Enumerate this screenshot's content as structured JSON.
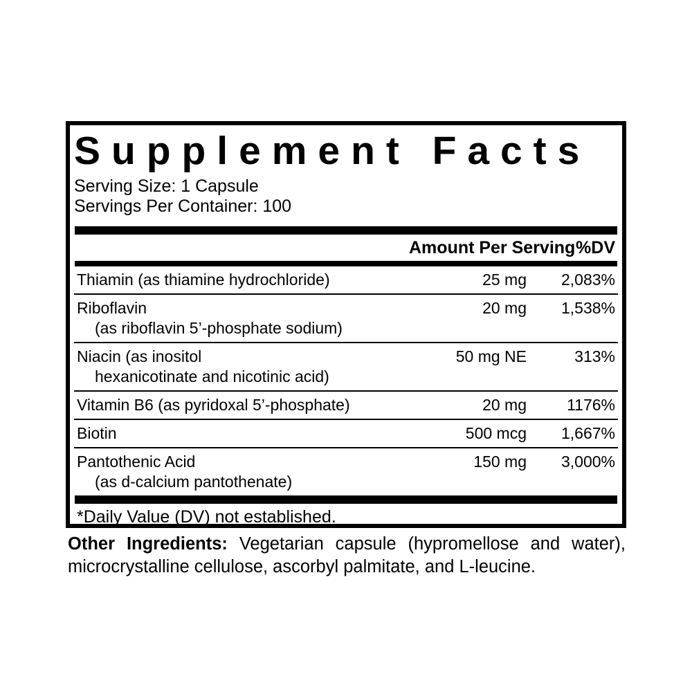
{
  "panel": {
    "title": "Supplement Facts",
    "serving_size_label": "Serving Size:",
    "serving_size_value": "1 Capsule",
    "servings_label": "Servings Per Container:",
    "servings_value": "100",
    "columns": {
      "amount": "Amount Per Serving",
      "dv": "%DV"
    },
    "rows": [
      {
        "name": "Thiamin (as thiamine hydrochloride)",
        "name2": "",
        "amount": "25 mg",
        "dv": "2,083%"
      },
      {
        "name": "Riboflavin",
        "name2": "(as riboflavin 5’-phosphate sodium)",
        "amount": "20 mg",
        "dv": "1,538%"
      },
      {
        "name": "Niacin (as inositol",
        "name2": "hexanicotinate and nicotinic acid)",
        "amount": "50 mg NE",
        "dv": "313%"
      },
      {
        "name": "Vitamin B6 (as pyridoxal 5’-phosphate)",
        "name2": "",
        "amount": "20 mg",
        "dv": "1176%"
      },
      {
        "name": "Biotin",
        "name2": "",
        "amount": "500 mcg",
        "dv": "1,667%"
      },
      {
        "name": "Pantothenic Acid",
        "name2": "(as d-calcium pantothenate)",
        "amount": "150 mg",
        "dv": "3,000%"
      }
    ],
    "footnote": "*Daily Value (DV) not established.",
    "other_ingredients_label": "Other Ingredients:",
    "other_ingredients_text": "Vegetarian capsule (hypromellose and water), microcrystalline cellulose, ascorbyl palmitate, and L-leucine.",
    "colors": {
      "ink": "#000000",
      "background": "#ffffff"
    }
  }
}
